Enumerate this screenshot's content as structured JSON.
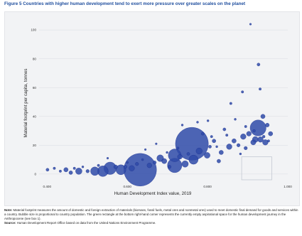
{
  "title": "Figure 5 Countries with higher human development tend to exert more pressure over greater scales on the planet",
  "note_lead": "Note:",
  "note_text": "Material footprint measures the amount of domestic and foreign extraction of materials (biomass, fossil fuels, metal ores and nonmetal ores) used to meet domestic final demand for goods and services within a country. Bubble size is proportional to country population. The green rectangle at the bottom right-hand corner represents the currently empty aspirational space for the human development journey in the Anthropocene (see box 1).",
  "source_lead": "Source:",
  "source_text": "Human Development Report Office based on data from the United Nations Environment Programme.",
  "colors": {
    "bubble_fill": "#2f4aa8",
    "bubble_stroke": "#16288a",
    "grid": "#d9dbe2",
    "target_box": "#c4c9d2",
    "title": "#1f4e9e"
  },
  "chart_data": {
    "type": "scatter",
    "xlabel": "Human Development Index value, 2019",
    "ylabel": "Material footprint per capita, tonnes",
    "xlim": [
      0.38,
      1.0
    ],
    "ylim": [
      -5,
      105
    ],
    "x_ticks": [
      0.4,
      0.6,
      0.8,
      1.0
    ],
    "x_tick_labels": [
      "0.400",
      "0.600",
      "0.800",
      "1.000"
    ],
    "y_ticks": [
      0,
      20,
      40,
      60,
      80,
      100
    ],
    "y_tick_labels": [
      "0",
      "20",
      "40",
      "60",
      "80",
      "100"
    ],
    "grid": true,
    "target_region": {
      "x": [
        0.885,
        0.96
      ],
      "y": [
        -4,
        12
      ]
    },
    "points": [
      {
        "x": 0.632,
        "y": 3,
        "size": 1380
      },
      {
        "x": 0.761,
        "y": 21,
        "size": 1400
      },
      {
        "x": 0.926,
        "y": 32,
        "size": 330
      },
      {
        "x": 0.557,
        "y": 4,
        "size": 200
      },
      {
        "x": 0.718,
        "y": 6,
        "size": 270
      },
      {
        "x": 0.718,
        "y": 13,
        "size": 210
      },
      {
        "x": 0.539,
        "y": 2,
        "size": 150
      },
      {
        "x": 0.765,
        "y": 10,
        "size": 110
      },
      {
        "x": 0.584,
        "y": 3,
        "size": 130
      },
      {
        "x": 0.519,
        "y": 2,
        "size": 95
      },
      {
        "x": 0.682,
        "y": 11,
        "size": 60
      },
      {
        "x": 0.479,
        "y": 2,
        "size": 55
      },
      {
        "x": 0.744,
        "y": 7,
        "size": 55
      },
      {
        "x": 0.779,
        "y": 16,
        "size": 50
      },
      {
        "x": 0.799,
        "y": 13,
        "size": 45
      },
      {
        "x": 0.919,
        "y": 24,
        "size": 45
      },
      {
        "x": 0.932,
        "y": 24,
        "size": 40
      },
      {
        "x": 0.944,
        "y": 22,
        "size": 40
      },
      {
        "x": 0.611,
        "y": 4,
        "size": 40
      },
      {
        "x": 0.655,
        "y": 6,
        "size": 30
      },
      {
        "x": 0.692,
        "y": 9,
        "size": 35
      },
      {
        "x": 0.731,
        "y": 12,
        "size": 30
      },
      {
        "x": 0.854,
        "y": 19,
        "size": 40
      },
      {
        "x": 0.889,
        "y": 26,
        "size": 40
      },
      {
        "x": 0.903,
        "y": 28,
        "size": 30
      },
      {
        "x": 0.914,
        "y": 22,
        "size": 35
      },
      {
        "x": 0.938,
        "y": 40,
        "size": 25
      },
      {
        "x": 0.949,
        "y": 34,
        "size": 20
      },
      {
        "x": 0.957,
        "y": 28,
        "size": 25
      },
      {
        "x": 0.834,
        "y": 15,
        "size": 25
      },
      {
        "x": 0.816,
        "y": 23,
        "size": 18
      },
      {
        "x": 0.828,
        "y": 9,
        "size": 18
      },
      {
        "x": 0.866,
        "y": 23,
        "size": 25
      },
      {
        "x": 0.877,
        "y": 20,
        "size": 15
      },
      {
        "x": 0.895,
        "y": 18,
        "size": 15
      },
      {
        "x": 0.447,
        "y": 3,
        "size": 25
      },
      {
        "x": 0.459,
        "y": 1,
        "size": 18
      },
      {
        "x": 0.501,
        "y": 2,
        "size": 15
      },
      {
        "x": 0.571,
        "y": 5,
        "size": 20
      },
      {
        "x": 0.595,
        "y": 5,
        "size": 15
      },
      {
        "x": 0.624,
        "y": 7,
        "size": 15
      },
      {
        "x": 0.668,
        "y": 8,
        "size": 15
      },
      {
        "x": 0.705,
        "y": 5,
        "size": 15
      },
      {
        "x": 0.752,
        "y": 14,
        "size": 12
      },
      {
        "x": 0.788,
        "y": 28,
        "size": 12
      },
      {
        "x": 0.806,
        "y": 19,
        "size": 12
      },
      {
        "x": 0.842,
        "y": 31,
        "size": 12
      },
      {
        "x": 0.927,
        "y": 76,
        "size": 12
      },
      {
        "x": 0.887,
        "y": 57,
        "size": 8
      },
      {
        "x": 0.858,
        "y": 49,
        "size": 8
      },
      {
        "x": 0.931,
        "y": 59,
        "size": 8
      },
      {
        "x": 0.907,
        "y": 104,
        "size": 5
      },
      {
        "x": 0.737,
        "y": 34,
        "size": 6
      },
      {
        "x": 0.801,
        "y": 37,
        "size": 6
      },
      {
        "x": 0.775,
        "y": 36,
        "size": 6
      },
      {
        "x": 0.848,
        "y": 27,
        "size": 8
      },
      {
        "x": 0.869,
        "y": 38,
        "size": 6
      },
      {
        "x": 0.895,
        "y": 33,
        "size": 8
      },
      {
        "x": 0.672,
        "y": 21,
        "size": 5
      },
      {
        "x": 0.645,
        "y": 17,
        "size": 5
      },
      {
        "x": 0.551,
        "y": 11,
        "size": 5
      },
      {
        "x": 0.401,
        "y": 3,
        "size": 12
      },
      {
        "x": 0.418,
        "y": 4,
        "size": 8
      },
      {
        "x": 0.433,
        "y": 2,
        "size": 8
      },
      {
        "x": 0.468,
        "y": 4,
        "size": 8
      },
      {
        "x": 0.489,
        "y": 5,
        "size": 6
      },
      {
        "x": 0.528,
        "y": 6,
        "size": 8
      },
      {
        "x": 0.6,
        "y": 8,
        "size": 6
      },
      {
        "x": 0.638,
        "y": 10,
        "size": 6
      },
      {
        "x": 0.699,
        "y": 15,
        "size": 6
      },
      {
        "x": 0.726,
        "y": 18,
        "size": 8
      },
      {
        "x": 0.81,
        "y": 26,
        "size": 8
      },
      {
        "x": 0.823,
        "y": 19,
        "size": 6
      },
      {
        "x": 0.882,
        "y": 14,
        "size": 6
      },
      {
        "x": 0.916,
        "y": 30,
        "size": 10
      },
      {
        "x": 0.94,
        "y": 26,
        "size": 10
      },
      {
        "x": 0.952,
        "y": 23,
        "size": 8
      }
    ]
  }
}
